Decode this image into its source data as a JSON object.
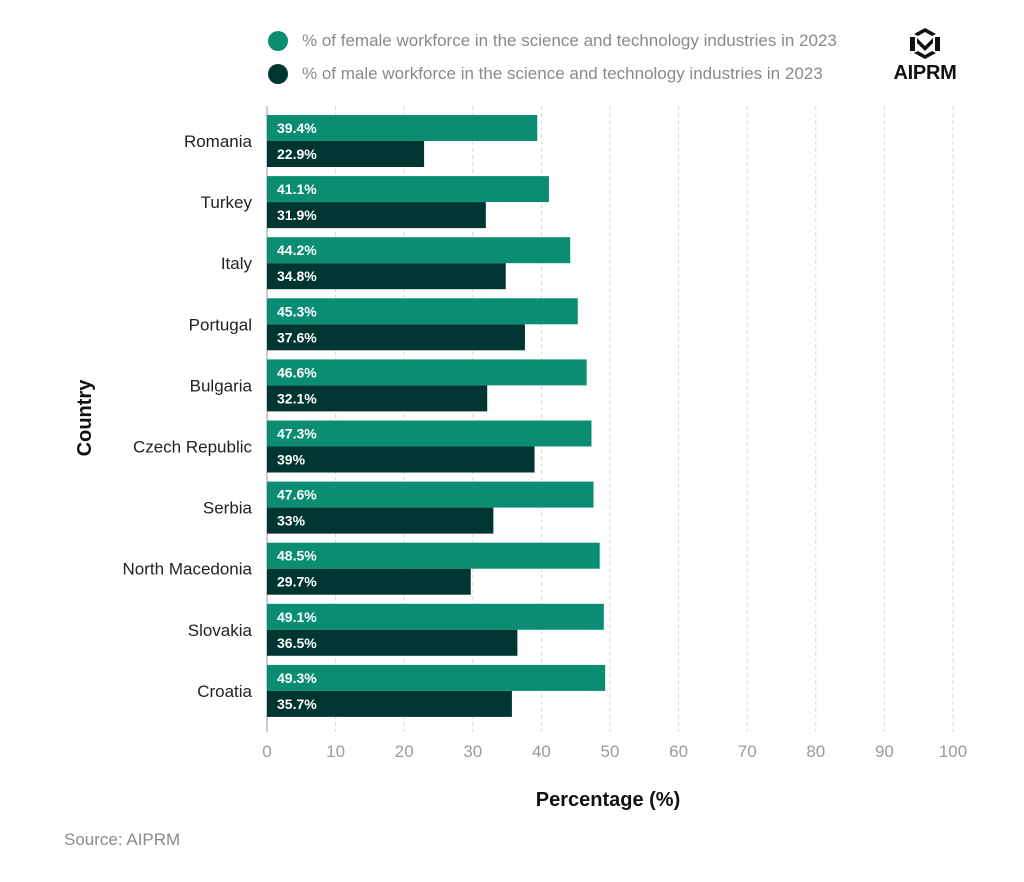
{
  "legend": {
    "female_label": "% of female workforce in the science and technology industries in 2023",
    "male_label": "% of male workforce in the science and technology industries in 2023"
  },
  "logo": {
    "text": "AIPRM",
    "icon": "aiprm-logo-icon"
  },
  "source": "Source: AIPRM",
  "colors": {
    "female": "#0b8d73",
    "male": "#003631",
    "grid": "#d8d8d8",
    "axis_text": "#9a9a9a"
  },
  "chart_data": {
    "type": "bar",
    "orientation": "horizontal",
    "categories": [
      "Romania",
      "Turkey",
      "Italy",
      "Portugal",
      "Bulgaria",
      "Czech Republic",
      "Serbia",
      "North Macedonia",
      "Slovakia",
      "Croatia"
    ],
    "series": [
      {
        "name": "% of female workforce in the science and technology industries in 2023",
        "values": [
          39.4,
          41.1,
          44.2,
          45.3,
          46.6,
          47.3,
          47.6,
          48.5,
          49.1,
          49.3
        ],
        "labels": [
          "39.4%",
          "41.1%",
          "44.2%",
          "45.3%",
          "46.6%",
          "47.3%",
          "47.6%",
          "48.5%",
          "49.1%",
          "49.3%"
        ]
      },
      {
        "name": "% of male workforce in the science and technology industries in 2023",
        "values": [
          22.9,
          31.9,
          34.8,
          37.6,
          32.1,
          39,
          33,
          29.7,
          36.5,
          35.7
        ],
        "labels": [
          "22.9%",
          "31.9%",
          "34.8%",
          "37.6%",
          "32.1%",
          "39%",
          "33%",
          "29.7%",
          "36.5%",
          "35.7%"
        ]
      }
    ],
    "xlabel": "Percentage (%)",
    "ylabel": "Country",
    "xlim": [
      0,
      100
    ],
    "xticks": [
      "0",
      "10",
      "20",
      "30",
      "40",
      "50",
      "60",
      "70",
      "80",
      "90",
      "100"
    ],
    "grid": "vertical dashed",
    "legend_position": "top"
  }
}
